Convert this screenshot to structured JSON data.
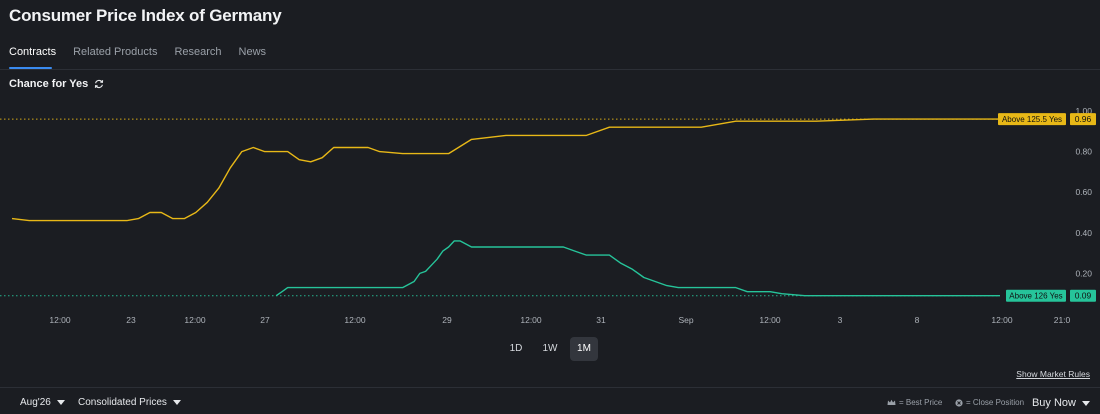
{
  "header": {
    "title": "Consumer Price Index of Germany"
  },
  "tabs": [
    "Contracts",
    "Related Products",
    "Research",
    "News"
  ],
  "chance": {
    "label": "Chance for Yes",
    "icon": "refresh-icon"
  },
  "range_buttons": [
    "1D",
    "1W",
    "1M"
  ],
  "range_selected": "1M",
  "show_rules_label": "Show Market Rules",
  "footer": {
    "contract_select": "Aug'26",
    "price_mode_select": "Consolidated Prices",
    "best_price_label": "= Best Price",
    "close_position_label": "= Close Position",
    "buy_now_label": "Buy Now"
  },
  "chart_data": {
    "type": "line",
    "ylim": [
      0,
      1.0
    ],
    "y_ticks": [
      "1.00",
      "0.80",
      "0.60",
      "0.40",
      "0.20"
    ],
    "x_ticks": [
      "12:00",
      "23",
      "12:00",
      "27",
      "12:00",
      "29",
      "12:00",
      "31",
      "Sep",
      "12:00",
      "3",
      "8",
      "12:00",
      "21:0"
    ],
    "colors": {
      "above_125_5": "#e8b817",
      "above_126": "#26c49a"
    },
    "series": [
      {
        "name": "Above 125.5 Yes",
        "last_value": "0.96",
        "x": [
          0,
          1.5,
          10,
          11,
          12,
          13,
          14,
          15,
          16,
          17,
          18,
          19,
          20,
          21,
          22,
          23,
          24,
          25,
          26,
          27,
          28,
          29,
          31,
          32,
          34,
          36,
          38,
          40,
          43,
          45,
          47,
          50,
          52,
          60,
          62,
          63,
          65,
          66,
          68,
          70,
          75,
          78,
          81,
          86
        ],
        "values": [
          0.47,
          0.46,
          0.46,
          0.47,
          0.5,
          0.5,
          0.47,
          0.47,
          0.5,
          0.55,
          0.62,
          0.72,
          0.8,
          0.82,
          0.8,
          0.8,
          0.8,
          0.76,
          0.75,
          0.77,
          0.82,
          0.82,
          0.82,
          0.8,
          0.79,
          0.79,
          0.79,
          0.86,
          0.88,
          0.88,
          0.88,
          0.88,
          0.92,
          0.92,
          0.94,
          0.95,
          0.95,
          0.95,
          0.95,
          0.95,
          0.96,
          0.96,
          0.96,
          0.96
        ]
      },
      {
        "name": "Above 126 Yes",
        "last_value": "0.09",
        "x": [
          23,
          23.5,
          24,
          30,
          34,
          35,
          35.5,
          36,
          36.5,
          37,
          37.5,
          38,
          38.5,
          39,
          40,
          48,
          49,
          50,
          51,
          51.5,
          52,
          53,
          54,
          55,
          57,
          58,
          59,
          60,
          60.5,
          61,
          62,
          63,
          64,
          65,
          66,
          67,
          69,
          71,
          72,
          73,
          76,
          77,
          78,
          80,
          81,
          83,
          86
        ],
        "values": [
          0.09,
          0.11,
          0.13,
          0.13,
          0.13,
          0.16,
          0.2,
          0.21,
          0.24,
          0.27,
          0.31,
          0.33,
          0.36,
          0.36,
          0.33,
          0.33,
          0.31,
          0.29,
          0.29,
          0.29,
          0.29,
          0.25,
          0.22,
          0.18,
          0.14,
          0.13,
          0.13,
          0.13,
          0.13,
          0.13,
          0.13,
          0.13,
          0.11,
          0.11,
          0.11,
          0.1,
          0.09,
          0.09,
          0.09,
          0.09,
          0.09,
          0.09,
          0.09,
          0.09,
          0.09,
          0.09,
          0.09
        ]
      }
    ]
  }
}
